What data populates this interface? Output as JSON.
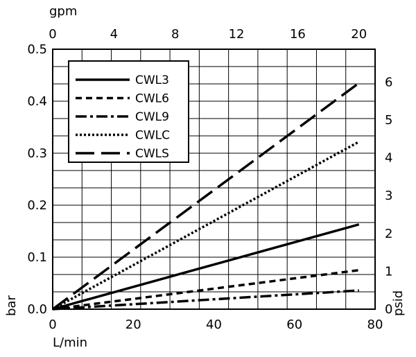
{
  "chart_data": {
    "type": "line",
    "x_label": "L/min",
    "x_ticks": [
      "0",
      "20",
      "40",
      "60",
      "80"
    ],
    "xlim": [
      0,
      80
    ],
    "x2_label": "gpm",
    "x2_ticks": [
      "0",
      "4",
      "8",
      "12",
      "16",
      "20"
    ],
    "y_label": "bar",
    "y_ticks": [
      "0.0",
      "0.1",
      "0.2",
      "0.3",
      "0.4",
      "0.5"
    ],
    "ylim": [
      0,
      0.5
    ],
    "y2_label": "psid",
    "y2_ticks": [
      "0",
      "1",
      "2",
      "3",
      "4",
      "5",
      "6"
    ],
    "grid": true,
    "legend_position": "top-left",
    "series": [
      {
        "name": "CWL3",
        "style": "solid",
        "x": [
          0,
          76
        ],
        "y": [
          0,
          0.163
        ]
      },
      {
        "name": "CWL6",
        "style": "dashed",
        "x": [
          0,
          76
        ],
        "y": [
          0,
          0.075
        ]
      },
      {
        "name": "CWL9",
        "style": "dash-dot",
        "x": [
          0,
          76
        ],
        "y": [
          0,
          0.036
        ]
      },
      {
        "name": "CWLC",
        "style": "dotted",
        "x": [
          0,
          76
        ],
        "y": [
          0,
          0.322
        ]
      },
      {
        "name": "CWLS",
        "style": "long-dash",
        "x": [
          0,
          76
        ],
        "y": [
          0,
          0.435
        ]
      }
    ]
  }
}
